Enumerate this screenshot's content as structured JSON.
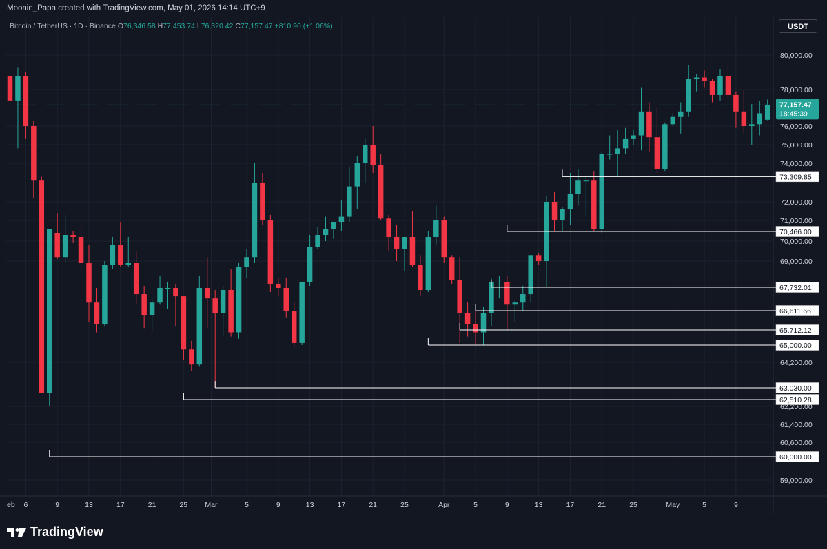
{
  "header": {
    "credit": "Moonin_Papa created with TradingView.com, May 01, 2026 14:14 UTC+9"
  },
  "legend": {
    "symbol": "Bitcoin / TetherUS · 1D · Binance",
    "o_label": "O",
    "o_value": "76,346.58",
    "h_label": "H",
    "h_value": "77,453.74",
    "l_label": "L",
    "l_value": "76,320.42",
    "c_label": "C",
    "c_value": "77,157.47",
    "change": "+810.90 (+1.06%)"
  },
  "currency_button": "USDT",
  "footer": {
    "logo_text": "TradingView",
    "logo_icon": "tradingview-logo-icon"
  },
  "colors": {
    "up": "#26a69a",
    "down": "#f23645",
    "background": "#131722",
    "grid": "#1e222d",
    "text": "#d1d4dc"
  },
  "chart_data": {
    "type": "candlestick",
    "title": "Bitcoin / TetherUS · 1D · Binance",
    "price_axis": {
      "labels": [
        "80,000.00",
        "78,000.00",
        "76,000.00",
        "75,000.00",
        "74,000.00",
        "72,000.00",
        "71,000.00",
        "70,000.00",
        "69,000.00",
        "64,200.00",
        "62,200.00",
        "61,400.00",
        "60,600.00",
        "59,000.00"
      ],
      "values": [
        80000,
        78000,
        76000,
        75000,
        74000,
        72000,
        71000,
        70000,
        69000,
        64200,
        62200,
        61400,
        60600,
        59000
      ],
      "ylim": [
        58200,
        80800
      ]
    },
    "time_axis": {
      "labels": [
        "eb",
        "6",
        "9",
        "13",
        "17",
        "21",
        "25",
        "Mar",
        "5",
        "9",
        "13",
        "17",
        "21",
        "25",
        "Apr",
        "5",
        "9",
        "13",
        "17",
        "21",
        "25",
        "May",
        "5",
        "9"
      ],
      "day_index": [
        -1.5,
        2,
        6,
        10,
        14,
        18,
        22,
        25.5,
        30,
        34,
        38,
        42,
        46,
        50,
        55,
        59,
        63,
        67,
        71,
        75,
        79,
        84,
        88,
        92
      ]
    },
    "current_price": {
      "price": 77157.47,
      "label": "77,157.47",
      "countdown": "18:45:39"
    },
    "levels": [
      {
        "price": 73309.85,
        "label": "73,309.85",
        "from_day": 70
      },
      {
        "price": 70466.0,
        "label": "70,466.00",
        "from_day": 63
      },
      {
        "price": 67732.01,
        "label": "67,732.01",
        "from_day": 61
      },
      {
        "price": 66611.66,
        "label": "66,611.66",
        "from_day": 59
      },
      {
        "price": 65712.12,
        "label": "65,712.12",
        "from_day": 57
      },
      {
        "price": 65000.0,
        "label": "65,000.00",
        "from_day": 53
      },
      {
        "price": 63030.0,
        "label": "63,030.00",
        "from_day": 26
      },
      {
        "price": 62510.28,
        "label": "62,510.28",
        "from_day": 22
      },
      {
        "price": 60000.0,
        "label": "60,000.00",
        "from_day": 5
      }
    ],
    "ohlc": [
      [
        78800,
        79500,
        73900,
        77400
      ],
      [
        77400,
        79300,
        74800,
        78800
      ],
      [
        78800,
        79000,
        75300,
        76000
      ],
      [
        76000,
        76300,
        72200,
        73100
      ],
      [
        73100,
        73300,
        62800,
        62800
      ],
      [
        62800,
        70600,
        62200,
        70600
      ],
      [
        70400,
        71400,
        69100,
        69200
      ],
      [
        69200,
        71300,
        68900,
        70300
      ],
      [
        70300,
        70500,
        69900,
        70200
      ],
      [
        70200,
        70800,
        68400,
        68900
      ],
      [
        68900,
        69800,
        66100,
        67000
      ],
      [
        67000,
        67700,
        65600,
        66000
      ],
      [
        66000,
        69000,
        65900,
        68800
      ],
      [
        68800,
        70200,
        68600,
        69800
      ],
      [
        69800,
        70900,
        68700,
        68800
      ],
      [
        68800,
        70200,
        68700,
        68900
      ],
      [
        68900,
        69500,
        66900,
        67400
      ],
      [
        67400,
        67800,
        65800,
        66400
      ],
      [
        66400,
        67200,
        65700,
        67000
      ],
      [
        67000,
        68300,
        66900,
        67700
      ],
      [
        67700,
        68000,
        66700,
        67700
      ],
      [
        67700,
        67900,
        65900,
        67300
      ],
      [
        67300,
        67300,
        64300,
        64800
      ],
      [
        64800,
        65200,
        63800,
        64100
      ],
      [
        64100,
        68300,
        64000,
        67700
      ],
      [
        67700,
        69200,
        65800,
        67200
      ],
      [
        67200,
        67600,
        63030,
        66500
      ],
      [
        66500,
        67800,
        65400,
        67600
      ],
      [
        67600,
        68600,
        65400,
        65600
      ],
      [
        65600,
        68900,
        65300,
        68700
      ],
      [
        68700,
        69600,
        68200,
        69200
      ],
      [
        69200,
        74000,
        68900,
        73000
      ],
      [
        73000,
        73500,
        70800,
        71000
      ],
      [
        71000,
        71300,
        67500,
        67900
      ],
      [
        67900,
        68200,
        67300,
        67700
      ],
      [
        67700,
        68200,
        66300,
        66600
      ],
      [
        66600,
        67000,
        64900,
        65100
      ],
      [
        65100,
        68000,
        65000,
        68000
      ],
      [
        68000,
        70300,
        67800,
        69700
      ],
      [
        69700,
        70700,
        69600,
        70300
      ],
      [
        70300,
        71200,
        70000,
        70600
      ],
      [
        70600,
        70900,
        70100,
        70900
      ],
      [
        70900,
        72100,
        70500,
        71200
      ],
      [
        71200,
        73800,
        70900,
        72800
      ],
      [
        72800,
        74400,
        71600,
        74000
      ],
      [
        74000,
        75300,
        73000,
        75000
      ],
      [
        75000,
        76000,
        73500,
        73900
      ],
      [
        73900,
        74500,
        71000,
        71100
      ],
      [
        71100,
        71300,
        69500,
        70200
      ],
      [
        70200,
        70800,
        69000,
        69600
      ],
      [
        69600,
        70200,
        68500,
        70200
      ],
      [
        70200,
        71500,
        68700,
        68800
      ],
      [
        68800,
        69300,
        67300,
        67600
      ],
      [
        67600,
        70500,
        67500,
        70200
      ],
      [
        70200,
        71800,
        69800,
        71000
      ],
      [
        71000,
        71200,
        68900,
        69200
      ],
      [
        69200,
        69300,
        67900,
        68100
      ],
      [
        68100,
        69200,
        65100,
        66500
      ],
      [
        66500,
        67000,
        65400,
        66000
      ],
      [
        66000,
        66600,
        65000,
        65600
      ],
      [
        65600,
        66800,
        65000,
        66500
      ],
      [
        66500,
        68200,
        65900,
        68000
      ],
      [
        68000,
        68300,
        67200,
        68000
      ],
      [
        68000,
        68300,
        65712,
        66900
      ],
      [
        66900,
        67100,
        66100,
        67000
      ],
      [
        67000,
        67800,
        66611,
        67400
      ],
      [
        67400,
        69300,
        67000,
        69300
      ],
      [
        69300,
        69400,
        68800,
        69000
      ],
      [
        69000,
        72300,
        67732,
        72000
      ],
      [
        72000,
        72500,
        70500,
        71000
      ],
      [
        71000,
        71700,
        70466,
        71600
      ],
      [
        71600,
        73500,
        70800,
        72400
      ],
      [
        72400,
        73700,
        71800,
        73100
      ],
      [
        73100,
        73300,
        71200,
        73100
      ],
      [
        73100,
        73600,
        70466,
        70600
      ],
      [
        70600,
        74600,
        70400,
        74500
      ],
      [
        74500,
        75500,
        74200,
        74500
      ],
      [
        74500,
        75800,
        73309,
        74800
      ],
      [
        74800,
        75900,
        74500,
        75300
      ],
      [
        75300,
        75800,
        75000,
        75500
      ],
      [
        75500,
        78100,
        74700,
        76800
      ],
      [
        76800,
        77300,
        74600,
        75400
      ],
      [
        75400,
        77000,
        73500,
        73700
      ],
      [
        73700,
        76200,
        73600,
        76100
      ],
      [
        76100,
        76700,
        76000,
        76500
      ],
      [
        76500,
        77300,
        75600,
        76800
      ],
      [
        76800,
        79400,
        76500,
        78600
      ],
      [
        78600,
        78900,
        77900,
        78700
      ],
      [
        78700,
        79100,
        78100,
        78500
      ],
      [
        78500,
        78600,
        77300,
        77700
      ],
      [
        77700,
        79200,
        77400,
        78800
      ],
      [
        78800,
        79500,
        77500,
        77700
      ],
      [
        77700,
        77900,
        75900,
        76800
      ],
      [
        76800,
        78000,
        75600,
        76000
      ],
      [
        76000,
        77200,
        75000,
        76100
      ],
      [
        76100,
        77400,
        75500,
        76700
      ],
      [
        76346.58,
        77453.74,
        76320.42,
        77157.47
      ]
    ]
  }
}
